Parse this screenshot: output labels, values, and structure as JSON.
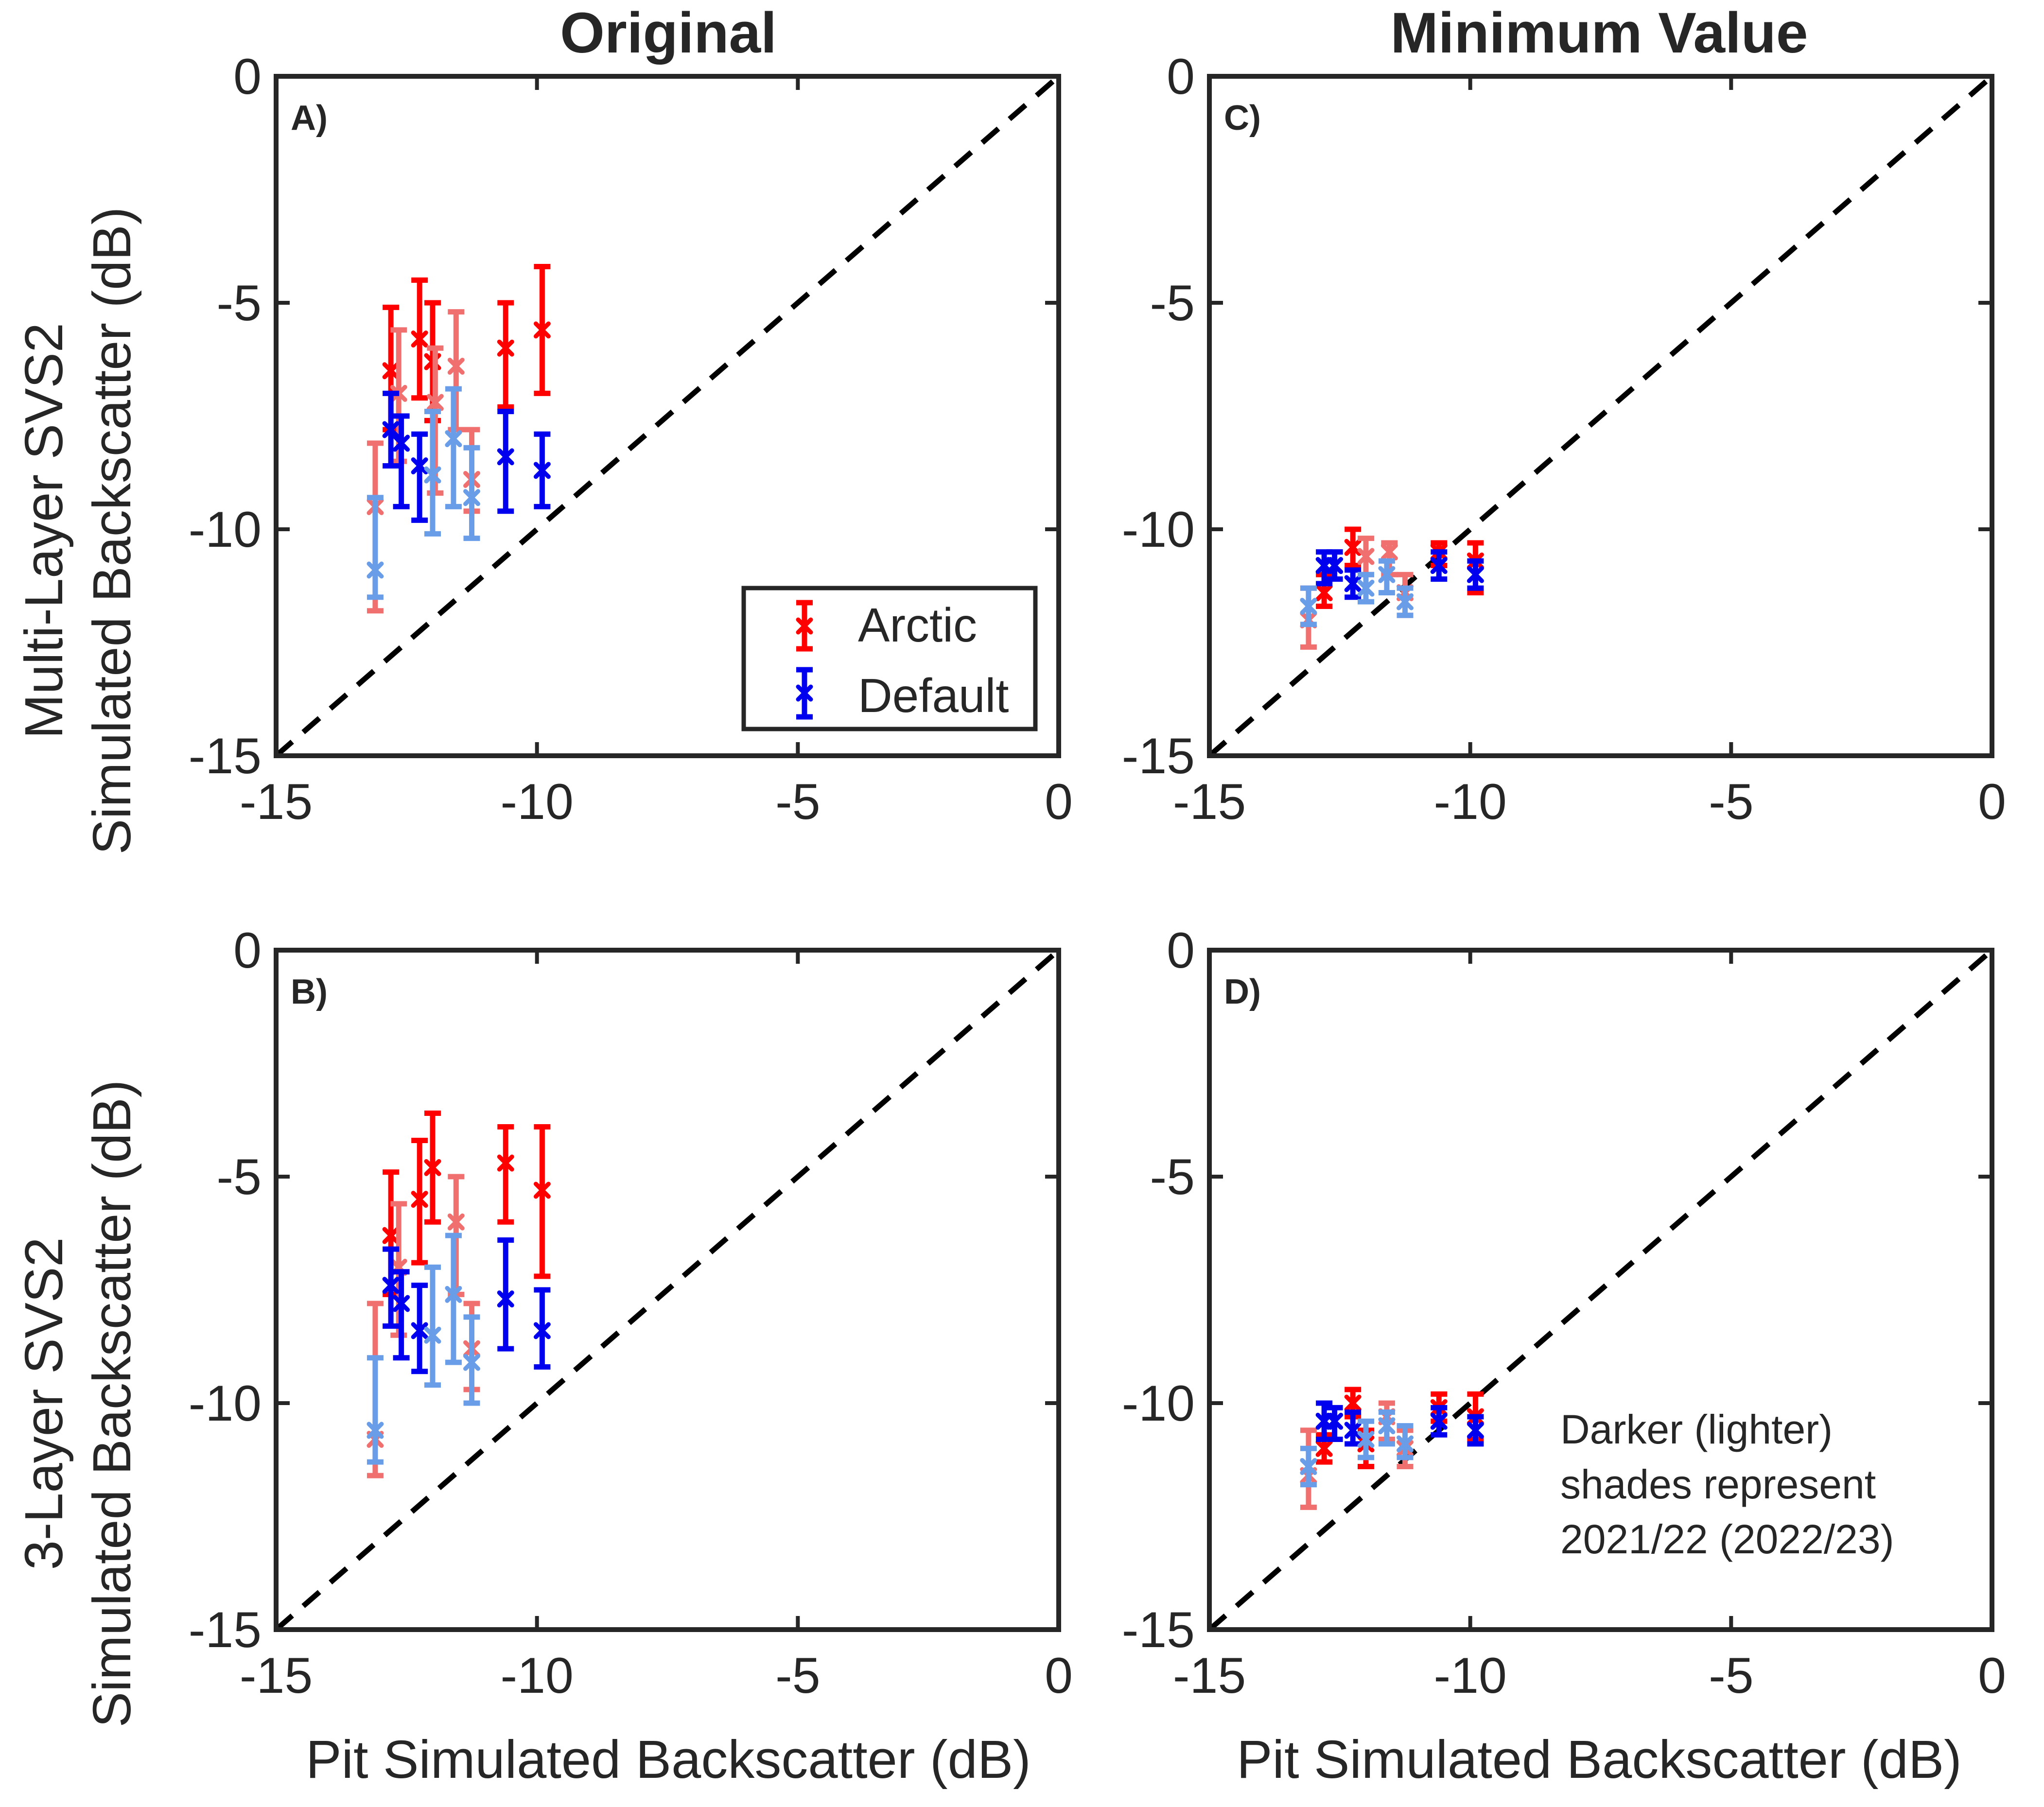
{
  "figure": {
    "column_titles": [
      "Original",
      "Minimum Value"
    ],
    "row_labels": [
      {
        "line1": "Multi-Layer SVS2",
        "line2": "Simulated Backscatter (dB)"
      },
      {
        "line1": "3-Layer SVS2",
        "line2": "Simulated Backscatter (dB)"
      }
    ],
    "xlabel": "Pit Simulated Backscatter (dB)",
    "legend": {
      "entries": [
        "Arctic",
        "Default"
      ]
    },
    "note": [
      "Darker (lighter)",
      "shades represent",
      "2021/22 (2022/23)"
    ],
    "colors": {
      "arctic_dark": "#ff0000",
      "arctic_light": "#f07070",
      "default_dark": "#0000ee",
      "default_light": "#6a9de8",
      "axis": "#262626",
      "one_to_one": "#000000"
    }
  },
  "chart_data": [
    {
      "id": "A",
      "panel_label": "A)",
      "type": "scatter",
      "xlim": [
        -15,
        0
      ],
      "ylim": [
        -15,
        0
      ],
      "xticks": [
        -15,
        -10,
        -5,
        0
      ],
      "yticks": [
        0,
        -5,
        -10,
        -15
      ],
      "one_to_one_line": true,
      "legend": "bottom-right",
      "series": [
        {
          "name": "Arctic 2021/22",
          "color": "arctic_dark",
          "points": [
            {
              "x": -12.8,
              "y": -6.5,
              "lo": -7.8,
              "hi": -5.1
            },
            {
              "x": -12.25,
              "y": -5.8,
              "lo": -7.1,
              "hi": -4.5
            },
            {
              "x": -10.6,
              "y": -6.0,
              "lo": -7.3,
              "hi": -5.0
            },
            {
              "x": -9.9,
              "y": -5.6,
              "lo": -7.0,
              "hi": -4.2
            },
            {
              "x": -12.0,
              "y": -6.3,
              "lo": -7.6,
              "hi": -5.0
            }
          ]
        },
        {
          "name": "Arctic 2022/23",
          "color": "arctic_light",
          "points": [
            {
              "x": -13.1,
              "y": -9.5,
              "lo": -11.8,
              "hi": -8.1
            },
            {
              "x": -12.65,
              "y": -7.0,
              "lo": -8.5,
              "hi": -5.6
            },
            {
              "x": -11.95,
              "y": -7.2,
              "lo": -9.2,
              "hi": -6.0
            },
            {
              "x": -11.55,
              "y": -6.4,
              "lo": -7.8,
              "hi": -5.2
            },
            {
              "x": -11.25,
              "y": -8.9,
              "lo": -9.6,
              "hi": -7.8
            }
          ]
        },
        {
          "name": "Default 2021/22",
          "color": "default_dark",
          "points": [
            {
              "x": -12.8,
              "y": -7.8,
              "lo": -8.6,
              "hi": -7.0
            },
            {
              "x": -12.6,
              "y": -8.1,
              "lo": -9.5,
              "hi": -7.5
            },
            {
              "x": -12.25,
              "y": -8.6,
              "lo": -9.8,
              "hi": -7.9
            },
            {
              "x": -10.6,
              "y": -8.4,
              "lo": -9.6,
              "hi": -7.4
            },
            {
              "x": -9.9,
              "y": -8.7,
              "lo": -9.5,
              "hi": -7.9
            }
          ]
        },
        {
          "name": "Default 2022/23",
          "color": "default_light",
          "points": [
            {
              "x": -13.1,
              "y": -10.9,
              "lo": -11.5,
              "hi": -9.3
            },
            {
              "x": -12.0,
              "y": -8.8,
              "lo": -10.1,
              "hi": -7.4
            },
            {
              "x": -11.6,
              "y": -8.0,
              "lo": -9.5,
              "hi": -6.9
            },
            {
              "x": -11.25,
              "y": -9.3,
              "lo": -10.2,
              "hi": -8.2
            }
          ]
        }
      ]
    },
    {
      "id": "B",
      "panel_label": "B)",
      "type": "scatter",
      "xlim": [
        -15,
        0
      ],
      "ylim": [
        -15,
        0
      ],
      "xticks": [
        -15,
        -10,
        -5,
        0
      ],
      "yticks": [
        0,
        -5,
        -10,
        -15
      ],
      "one_to_one_line": true,
      "series": [
        {
          "name": "Arctic 2021/22",
          "color": "arctic_dark",
          "points": [
            {
              "x": -12.8,
              "y": -6.3,
              "lo": -7.6,
              "hi": -4.9
            },
            {
              "x": -12.25,
              "y": -5.5,
              "lo": -6.9,
              "hi": -4.2
            },
            {
              "x": -12.0,
              "y": -4.8,
              "lo": -6.0,
              "hi": -3.6
            },
            {
              "x": -10.6,
              "y": -4.7,
              "lo": -6.0,
              "hi": -3.9
            },
            {
              "x": -9.9,
              "y": -5.3,
              "lo": -7.2,
              "hi": -3.9
            }
          ]
        },
        {
          "name": "Arctic 2022/23",
          "color": "arctic_light",
          "points": [
            {
              "x": -13.1,
              "y": -10.8,
              "lo": -11.6,
              "hi": -7.8
            },
            {
              "x": -12.65,
              "y": -7.0,
              "lo": -8.5,
              "hi": -5.6
            },
            {
              "x": -11.55,
              "y": -6.0,
              "lo": -7.6,
              "hi": -5.0
            },
            {
              "x": -11.25,
              "y": -8.8,
              "lo": -9.7,
              "hi": -7.8
            }
          ]
        },
        {
          "name": "Default 2021/22",
          "color": "default_dark",
          "points": [
            {
              "x": -12.8,
              "y": -7.4,
              "lo": -8.3,
              "hi": -6.6
            },
            {
              "x": -12.6,
              "y": -7.8,
              "lo": -9.0,
              "hi": -7.1
            },
            {
              "x": -12.25,
              "y": -8.4,
              "lo": -9.3,
              "hi": -7.4
            },
            {
              "x": -10.6,
              "y": -7.7,
              "lo": -8.8,
              "hi": -6.4
            },
            {
              "x": -9.9,
              "y": -8.4,
              "lo": -9.2,
              "hi": -7.5
            }
          ]
        },
        {
          "name": "Default 2022/23",
          "color": "default_light",
          "points": [
            {
              "x": -13.1,
              "y": -10.6,
              "lo": -11.3,
              "hi": -9.0
            },
            {
              "x": -12.0,
              "y": -8.5,
              "lo": -9.6,
              "hi": -7.0
            },
            {
              "x": -11.6,
              "y": -7.6,
              "lo": -9.1,
              "hi": -6.3
            },
            {
              "x": -11.25,
              "y": -9.1,
              "lo": -10.0,
              "hi": -8.1
            }
          ]
        }
      ]
    },
    {
      "id": "C",
      "panel_label": "C)",
      "type": "scatter",
      "xlim": [
        -15,
        0
      ],
      "ylim": [
        -15,
        0
      ],
      "xticks": [
        -15,
        -10,
        -5,
        0
      ],
      "yticks": [
        0,
        -5,
        -10,
        -15
      ],
      "one_to_one_line": true,
      "series": [
        {
          "name": "Arctic 2021/22",
          "color": "arctic_dark",
          "points": [
            {
              "x": -12.8,
              "y": -11.4,
              "lo": -11.7,
              "hi": -11.0
            },
            {
              "x": -12.25,
              "y": -10.4,
              "lo": -10.8,
              "hi": -10.0
            },
            {
              "x": -10.6,
              "y": -10.5,
              "lo": -10.8,
              "hi": -10.3
            },
            {
              "x": -9.9,
              "y": -10.7,
              "lo": -11.4,
              "hi": -10.3
            }
          ]
        },
        {
          "name": "Arctic 2022/23",
          "color": "arctic_light",
          "points": [
            {
              "x": -13.1,
              "y": -12.0,
              "lo": -12.6,
              "hi": -11.3
            },
            {
              "x": -12.0,
              "y": -10.6,
              "lo": -11.0,
              "hi": -10.2
            },
            {
              "x": -11.55,
              "y": -10.5,
              "lo": -11.0,
              "hi": -10.3
            },
            {
              "x": -11.25,
              "y": -11.4,
              "lo": -11.9,
              "hi": -11.0
            }
          ]
        },
        {
          "name": "Default 2021/22",
          "color": "default_dark",
          "points": [
            {
              "x": -12.8,
              "y": -10.8,
              "lo": -11.2,
              "hi": -10.5
            },
            {
              "x": -12.6,
              "y": -10.8,
              "lo": -11.1,
              "hi": -10.5
            },
            {
              "x": -12.25,
              "y": -11.2,
              "lo": -11.5,
              "hi": -10.9
            },
            {
              "x": -10.6,
              "y": -10.8,
              "lo": -11.1,
              "hi": -10.5
            },
            {
              "x": -9.9,
              "y": -11.0,
              "lo": -11.3,
              "hi": -10.7
            }
          ]
        },
        {
          "name": "Default 2022/23",
          "color": "default_light",
          "points": [
            {
              "x": -13.1,
              "y": -11.7,
              "lo": -12.1,
              "hi": -11.3
            },
            {
              "x": -12.0,
              "y": -11.3,
              "lo": -11.6,
              "hi": -11.0
            },
            {
              "x": -11.6,
              "y": -11.0,
              "lo": -11.4,
              "hi": -10.7
            },
            {
              "x": -11.25,
              "y": -11.6,
              "lo": -11.9,
              "hi": -11.3
            }
          ]
        }
      ]
    },
    {
      "id": "D",
      "panel_label": "D)",
      "type": "scatter",
      "xlim": [
        -15,
        0
      ],
      "ylim": [
        -15,
        0
      ],
      "xticks": [
        -15,
        -10,
        -5,
        0
      ],
      "yticks": [
        0,
        -5,
        -10,
        -15
      ],
      "one_to_one_line": true,
      "series": [
        {
          "name": "Arctic 2021/22",
          "color": "arctic_dark",
          "points": [
            {
              "x": -12.8,
              "y": -11.0,
              "lo": -11.3,
              "hi": -10.7
            },
            {
              "x": -12.25,
              "y": -10.0,
              "lo": -10.3,
              "hi": -9.7
            },
            {
              "x": -12.0,
              "y": -10.9,
              "lo": -11.4,
              "hi": -10.6
            },
            {
              "x": -10.6,
              "y": -10.1,
              "lo": -10.4,
              "hi": -9.8
            },
            {
              "x": -9.9,
              "y": -10.3,
              "lo": -10.8,
              "hi": -9.8
            }
          ]
        },
        {
          "name": "Arctic 2022/23",
          "color": "arctic_light",
          "points": [
            {
              "x": -13.1,
              "y": -11.6,
              "lo": -12.3,
              "hi": -10.6
            },
            {
              "x": -11.6,
              "y": -10.3,
              "lo": -10.8,
              "hi": -10.0
            },
            {
              "x": -11.25,
              "y": -11.0,
              "lo": -11.4,
              "hi": -10.6
            }
          ]
        },
        {
          "name": "Default 2021/22",
          "color": "default_dark",
          "points": [
            {
              "x": -12.8,
              "y": -10.4,
              "lo": -10.8,
              "hi": -10.0
            },
            {
              "x": -12.6,
              "y": -10.4,
              "lo": -10.8,
              "hi": -10.1
            },
            {
              "x": -12.25,
              "y": -10.6,
              "lo": -10.9,
              "hi": -10.2
            },
            {
              "x": -10.6,
              "y": -10.4,
              "lo": -10.7,
              "hi": -10.1
            },
            {
              "x": -9.9,
              "y": -10.6,
              "lo": -10.9,
              "hi": -10.3
            }
          ]
        },
        {
          "name": "Default 2022/23",
          "color": "default_light",
          "points": [
            {
              "x": -13.1,
              "y": -11.4,
              "lo": -11.8,
              "hi": -11.0
            },
            {
              "x": -12.0,
              "y": -10.8,
              "lo": -11.2,
              "hi": -10.4
            },
            {
              "x": -11.6,
              "y": -10.5,
              "lo": -10.9,
              "hi": -10.2
            },
            {
              "x": -11.25,
              "y": -10.9,
              "lo": -11.2,
              "hi": -10.5
            }
          ]
        }
      ]
    }
  ]
}
